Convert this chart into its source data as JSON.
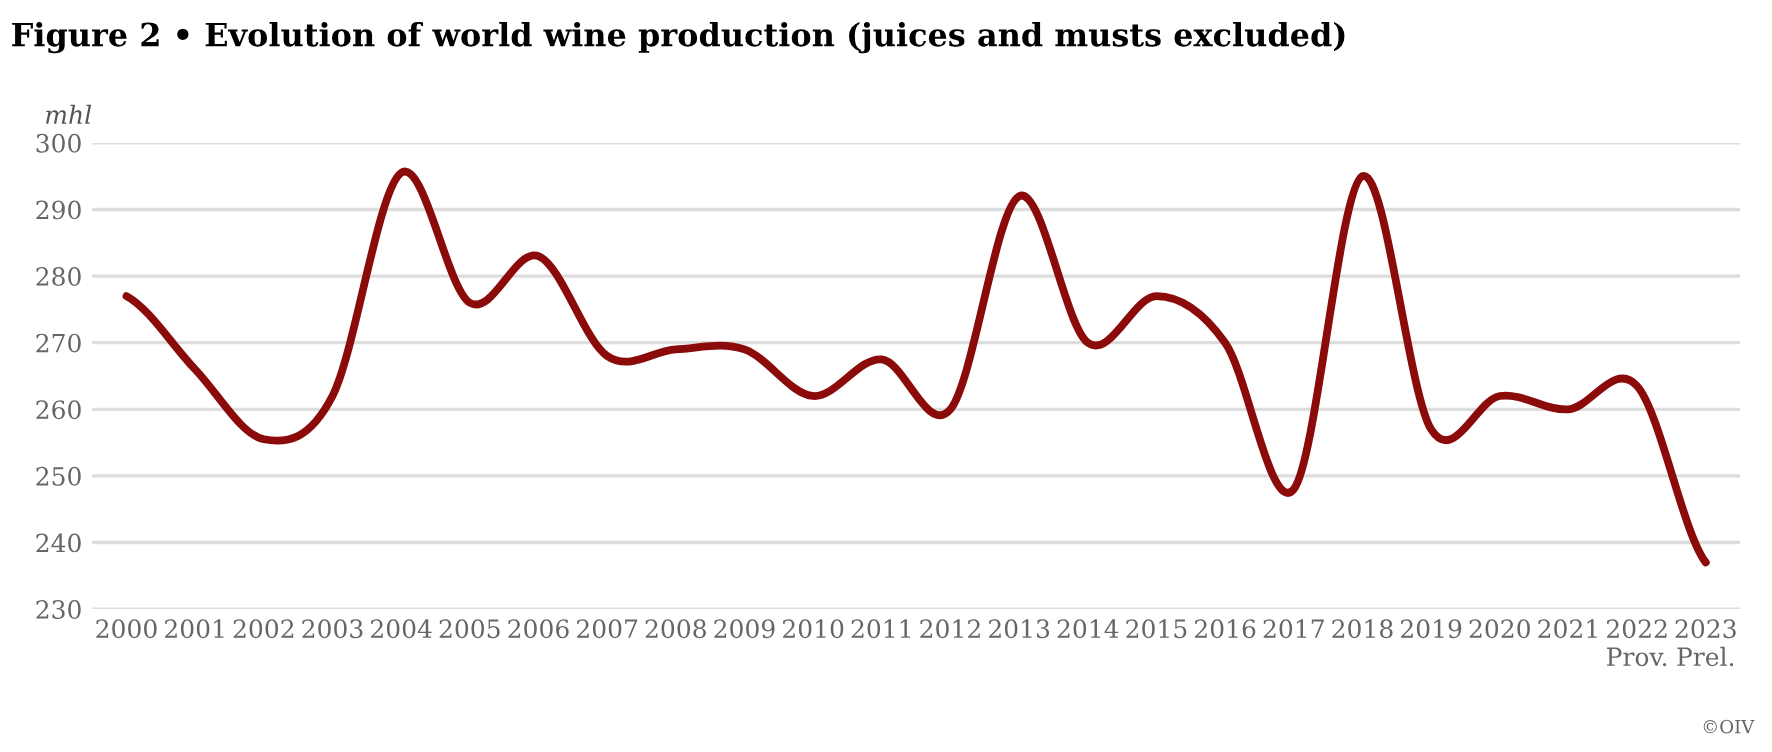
{
  "chart_data": {
    "type": "line",
    "title": "Figure 2 • Evolution of world wine production (juices and musts excluded)",
    "ylabel": "mhl",
    "categories": [
      "2000",
      "2001",
      "2002",
      "2003",
      "2004",
      "2005",
      "2006",
      "2007",
      "2008",
      "2009",
      "2010",
      "2011",
      "2012",
      "2013",
      "2014",
      "2015",
      "2016",
      "2017",
      "2018",
      "2019",
      "2020",
      "2021",
      "2022\nProv.",
      "2023\nPrel."
    ],
    "series": [
      {
        "color": "#8b0a0a",
        "values": [
          277,
          266,
          255.5,
          262,
          295.5,
          276,
          283,
          268,
          269,
          269,
          262,
          267.5,
          260,
          292,
          270,
          277,
          270,
          248,
          295,
          257,
          262,
          260,
          263.5,
          237
        ]
      }
    ],
    "ylim": [
      230,
      300
    ],
    "yticks": [
      230,
      240,
      250,
      260,
      270,
      280,
      290,
      300
    ],
    "grid": "y",
    "marker": "none",
    "line_style": "solid",
    "legend": false,
    "annotations": [
      "©OIV"
    ]
  }
}
